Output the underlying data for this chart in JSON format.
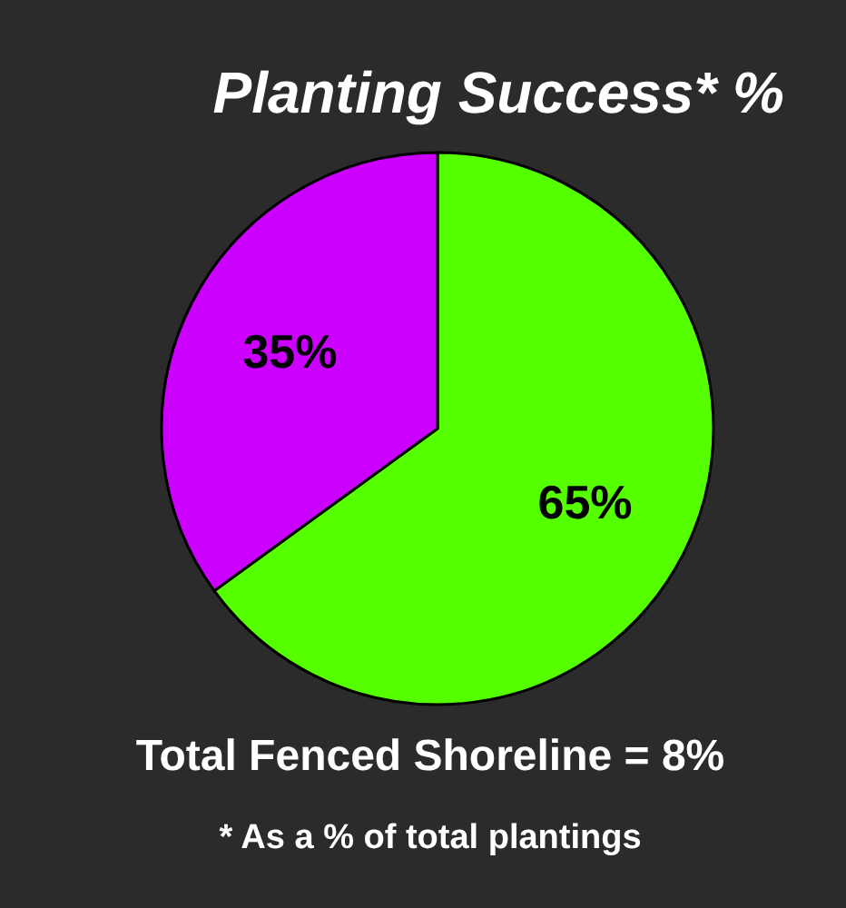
{
  "chart_data": {
    "type": "pie",
    "title": "Planting Success* %",
    "categories": [
      null,
      null
    ],
    "values": [
      65,
      35
    ],
    "colors": [
      "#55ff00",
      "#cc00ff"
    ],
    "value_labels": [
      "65%",
      "35%"
    ],
    "annotations": [
      "Total Fenced Shoreline = 8%",
      "* As a % of total plantings"
    ]
  }
}
